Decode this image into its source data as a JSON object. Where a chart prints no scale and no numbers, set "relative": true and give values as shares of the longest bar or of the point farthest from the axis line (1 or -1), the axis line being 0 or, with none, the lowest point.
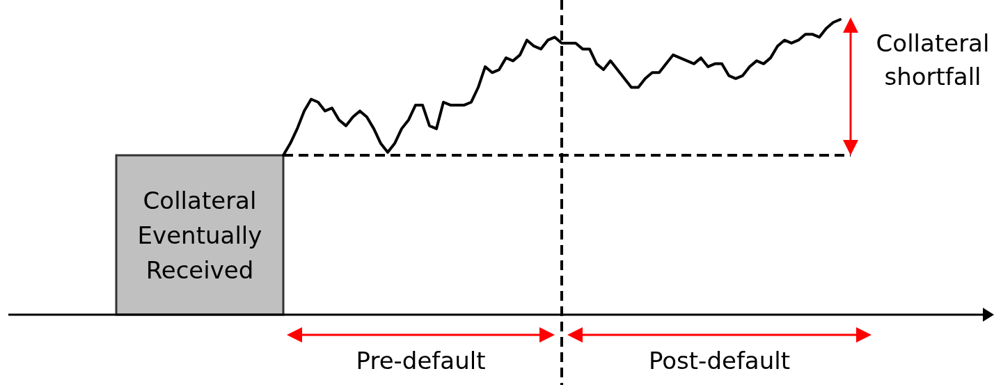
{
  "chart_data": {
    "type": "line",
    "relative": true,
    "categories": [
      null,
      null,
      null,
      null,
      null,
      null,
      null,
      null,
      null,
      null,
      null,
      null,
      null,
      null,
      null,
      null,
      null,
      null,
      null,
      null,
      null,
      null,
      null,
      null,
      null,
      null,
      null,
      null,
      null,
      null,
      null,
      null,
      null,
      null,
      null,
      null,
      null,
      null,
      null,
      null,
      null,
      null,
      null,
      null,
      null,
      null,
      null,
      null,
      null,
      null,
      null,
      null,
      null,
      null,
      null,
      null,
      null,
      null,
      null,
      null,
      null,
      null,
      null,
      null,
      null,
      null,
      null,
      null,
      null,
      null,
      null,
      null,
      null,
      null,
      null,
      null,
      null,
      null,
      null,
      null,
      null
    ],
    "series": [
      {
        "color": "#000000",
        "values": [
          0.54,
          0.58,
          0.63,
          0.69,
          0.73,
          0.72,
          0.69,
          0.7,
          0.66,
          0.64,
          0.67,
          0.69,
          0.67,
          0.63,
          0.58,
          0.55,
          0.58,
          0.63,
          0.66,
          0.71,
          0.71,
          0.64,
          0.63,
          0.72,
          0.71,
          0.71,
          0.71,
          0.72,
          0.77,
          0.84,
          0.82,
          0.83,
          0.87,
          0.86,
          0.88,
          0.93,
          0.91,
          0.9,
          0.93,
          0.94,
          0.92,
          0.92,
          0.92,
          0.9,
          0.9,
          0.85,
          0.83,
          0.86,
          0.83,
          0.8,
          0.77,
          0.77,
          0.8,
          0.82,
          0.82,
          0.85,
          0.88,
          0.87,
          0.86,
          0.85,
          0.87,
          0.84,
          0.85,
          0.85,
          0.81,
          0.8,
          0.81,
          0.84,
          0.86,
          0.85,
          0.87,
          0.91,
          0.93,
          0.92,
          0.93,
          0.95,
          0.95,
          0.94,
          0.97,
          0.99,
          1
        ]
      }
    ],
    "ref_lines": [
      {
        "axis": "y",
        "value": 0.54,
        "color": "#000000",
        "line_style": "dashed"
      }
    ],
    "annotations": [
      "Collateral Eventually Received",
      "Collateral shortfall",
      "Pre-default",
      "Post-default"
    ],
    "line_style": "solid",
    "marker": "none",
    "grid": false
  }
}
